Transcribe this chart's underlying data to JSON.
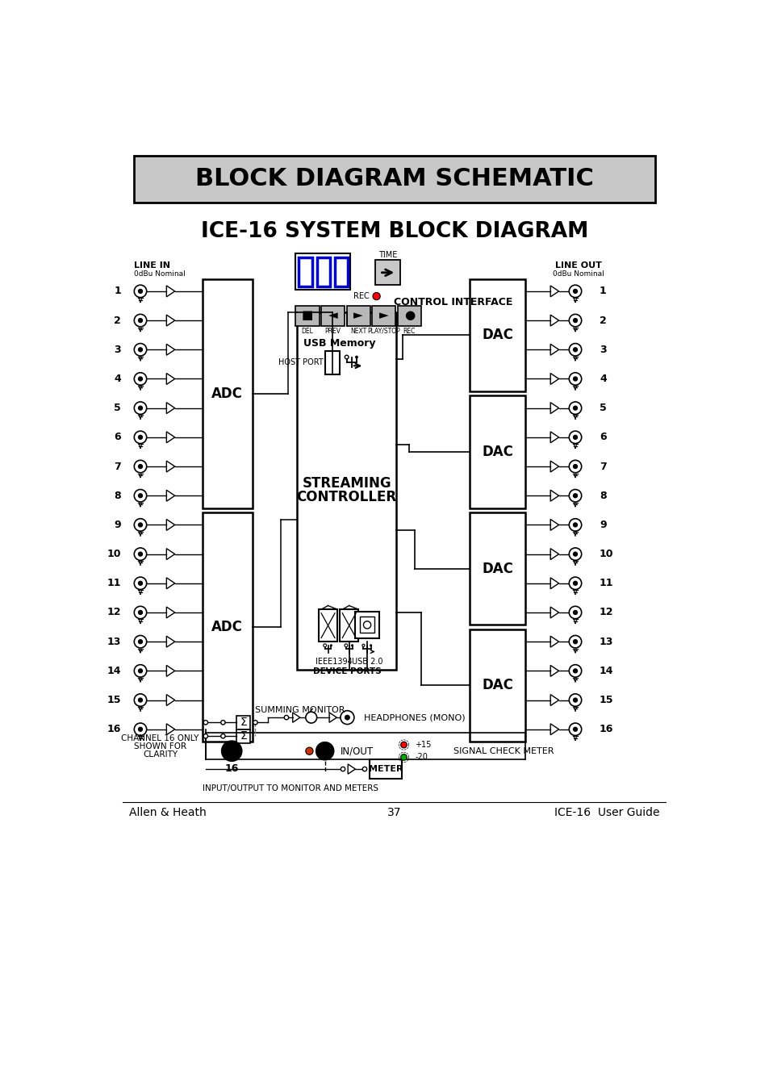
{
  "title_banner": "BLOCK DIAGRAM SCHEMATIC",
  "title_main": "ICE-16 SYSTEM BLOCK DIAGRAM",
  "banner_bg": "#c8c8c8",
  "n_channels": 16,
  "footer_left": "Allen & Heath",
  "footer_center": "37",
  "footer_right": "ICE-16  User Guide",
  "line_in_label": "LINE IN",
  "line_in_sub": "0dBu Nominal",
  "line_out_label": "LINE OUT",
  "line_out_sub": "0dBu Nominal",
  "adc_label": "ADC",
  "dac_label": "DAC",
  "sc_label1": "STREAMING",
  "sc_label2": "CONTROLLER",
  "usb_mem_label": "USB Memory",
  "host_port_label": "HOST PORT",
  "control_interface_label": "CONTROL INTERFACE",
  "time_label": "TIME",
  "rec_label": "REC",
  "btn_labels": [
    "DEL",
    "PREV",
    "NEXT",
    "PLAY/STOP",
    "REC"
  ],
  "btn_syms": [
    "■",
    "◄",
    "►",
    "►",
    "●"
  ],
  "ieee_label": "IEEE1394",
  "usb2_label": "USB 2.0",
  "device_ports_label": "DEVICE PORTS",
  "summing_monitor_label": "SUMMING MONITOR",
  "headphones_label": "HEADPHONES (MONO)",
  "inout_label": "IN/OUT",
  "signal_check_label": "SIGNAL CHECK METER",
  "meter_label": "METER",
  "io_monitor_label": "INPUT/OUTPUT TO MONITOR AND METERS",
  "ch16_label1": "CHANNEL 16 ONLY",
  "ch16_label2": "SHOWN FOR",
  "ch16_label3": "CLARITY"
}
